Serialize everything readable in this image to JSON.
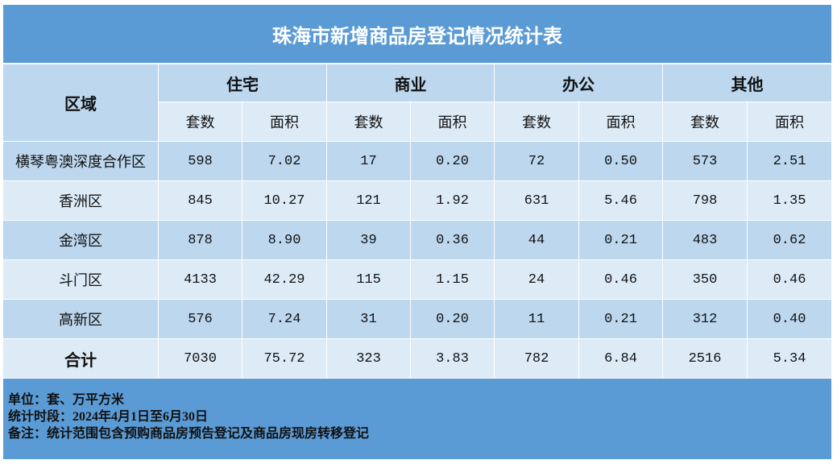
{
  "title": "珠海市新增商品房登记情况统计表",
  "header": {
    "region": "区域",
    "groups": [
      "住宅",
      "商业",
      "办公",
      "其他"
    ],
    "subheaders": [
      "套数",
      "面积",
      "套数",
      "面积",
      "套数",
      "面积",
      "套数",
      "面积"
    ]
  },
  "table": {
    "rows": [
      [
        "横琴粤澳深度合作区",
        "598",
        "7.02",
        "17",
        "0.20",
        "72",
        "0.50",
        "573",
        "2.51"
      ],
      [
        "香洲区",
        "845",
        "10.27",
        "121",
        "1.92",
        "631",
        "5.46",
        "798",
        "1.35"
      ],
      [
        "金湾区",
        "878",
        "8.90",
        "39",
        "0.36",
        "44",
        "0.21",
        "483",
        "0.62"
      ],
      [
        "斗门区",
        "4133",
        "42.29",
        "115",
        "1.15",
        "24",
        "0.46",
        "350",
        "0.46"
      ],
      [
        "高新区",
        "576",
        "7.24",
        "31",
        "0.20",
        "11",
        "0.21",
        "312",
        "0.40"
      ],
      [
        "合计",
        "7030",
        "75.72",
        "323",
        "3.83",
        "782",
        "6.84",
        "2516",
        "5.34"
      ]
    ]
  },
  "notes": [
    "单位：套、万平方米",
    "统计时段：2024年4月1日至6月30日",
    "备注：统计范围包含预购商品房预告登记及商品房现房转移登记"
  ]
}
